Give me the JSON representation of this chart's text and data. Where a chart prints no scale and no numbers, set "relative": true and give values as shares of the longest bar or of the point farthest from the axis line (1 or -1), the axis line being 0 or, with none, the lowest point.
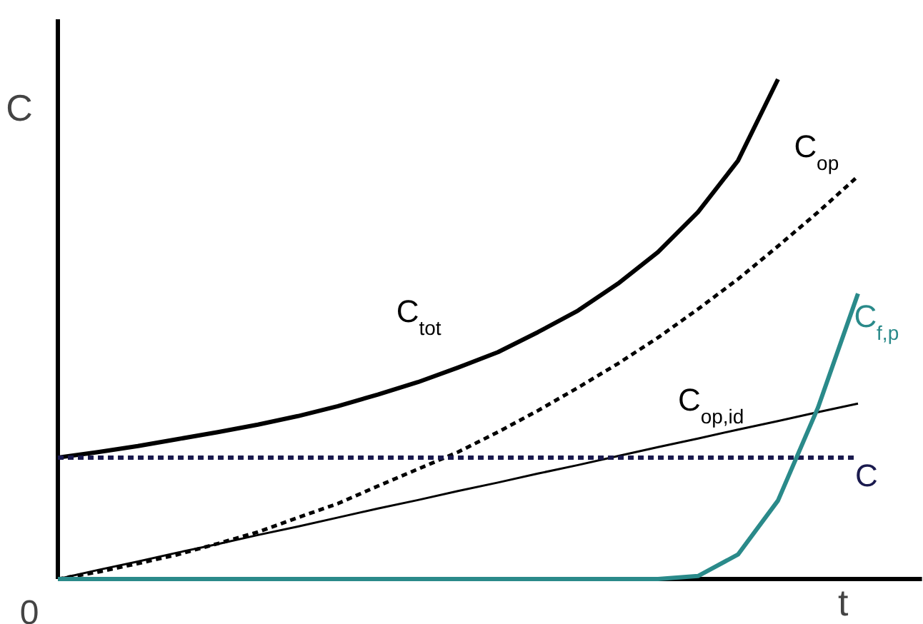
{
  "chart_data": {
    "type": "line",
    "relative": true,
    "xlabel": "t",
    "ylabel": "C",
    "categories": [
      null,
      null,
      null,
      null,
      null,
      null,
      null,
      null,
      null,
      null,
      null,
      null,
      null,
      null,
      null,
      null,
      null,
      null,
      null,
      null,
      null
    ],
    "series": [
      {
        "name": "C$_{tot}$",
        "color": "#000000",
        "line_style": "solid",
        "values": [
          0.243,
          0.254,
          0.266,
          0.28,
          0.294,
          0.309,
          0.326,
          0.346,
          0.369,
          0.394,
          0.423,
          0.454,
          0.494,
          0.537,
          0.591,
          0.654,
          0.734,
          0.837,
          1.0,
          null,
          null
        ]
      },
      {
        "name": "C$_{op}$",
        "color": "#000000",
        "line_style": "dashed",
        "values": [
          0,
          0.014,
          0.031,
          0.049,
          0.071,
          0.094,
          0.123,
          0.151,
          0.186,
          0.22,
          0.254,
          0.294,
          0.337,
          0.383,
          0.431,
          0.483,
          0.54,
          0.6,
          0.666,
          0.734,
          0.806
        ]
      },
      {
        "name": "C$_{op,id}$",
        "color": "#000000",
        "line_style": "solid",
        "values": [
          0,
          0.018,
          0.035,
          0.053,
          0.07,
          0.088,
          0.105,
          0.123,
          0.141,
          0.158,
          0.176,
          0.193,
          0.211,
          0.228,
          0.246,
          0.264,
          0.281,
          0.299,
          0.316,
          0.334,
          0.351
        ]
      },
      {
        "name": "C",
        "color": "#1a1a4e",
        "line_style": "dashed",
        "values": [
          0.243,
          0.243,
          0.243,
          0.243,
          0.243,
          0.243,
          0.243,
          0.243,
          0.243,
          0.243,
          0.243,
          0.243,
          0.243,
          0.243,
          0.243,
          0.243,
          0.243,
          0.243,
          0.243,
          0.243,
          0.243
        ]
      },
      {
        "name": "C$_{f,p}$",
        "color": "#2a8a8a",
        "line_style": "solid",
        "values": [
          0,
          0,
          0,
          0,
          0,
          0,
          0,
          0,
          0,
          0,
          0,
          0,
          0,
          0,
          0,
          0,
          0.006,
          0.049,
          0.157,
          0.343,
          0.571
        ]
      }
    ],
    "annotations": [
      "0"
    ],
    "legend": false,
    "grid": false,
    "marker": "none"
  }
}
